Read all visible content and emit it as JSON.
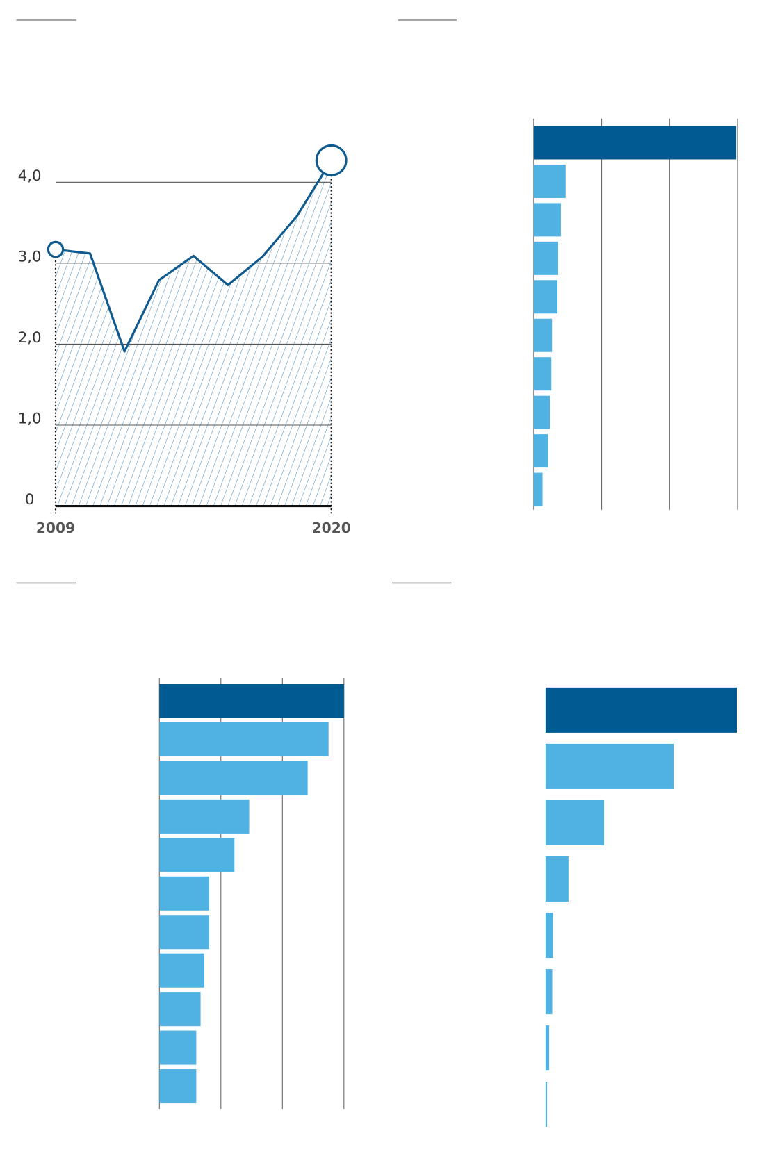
{
  "chart_data": [
    {
      "type": "line",
      "categories": [
        "2009",
        null,
        null,
        null,
        null,
        null,
        null,
        null,
        "2020"
      ],
      "values": [
        3.17,
        3.12,
        1.91,
        2.79,
        3.09,
        2.73,
        3.08,
        3.58,
        4.27
      ],
      "color": "#0f5a8e",
      "ylim": [
        0,
        4.3
      ],
      "yticks": [
        0,
        {
          "value": 1,
          "label": "1,0"
        },
        {
          "value": 2,
          "label": "2,0"
        },
        {
          "value": 3,
          "label": "3,0"
        },
        {
          "value": 4,
          "label": "4,0"
        }
      ],
      "grid": true
    },
    {
      "type": "barh",
      "values": [
        2.98,
        0.47,
        0.4,
        0.36,
        0.35,
        0.27,
        0.26,
        0.24,
        0.21,
        0.13
      ],
      "colors": [
        "#005b92",
        "#4fb2e3",
        "#4fb2e3",
        "#4fb2e3",
        "#4fb2e3",
        "#4fb2e3",
        "#4fb2e3",
        "#4fb2e3",
        "#4fb2e3",
        "#4fb2e3"
      ],
      "xlim": [
        0,
        3
      ],
      "xticks": [
        0,
        1,
        2,
        3
      ],
      "grid": true
    },
    {
      "type": "barh",
      "values": [
        3.0,
        2.75,
        2.41,
        1.46,
        1.22,
        0.81,
        0.81,
        0.73,
        0.67,
        0.6,
        0.6
      ],
      "colors": [
        "#005b92",
        "#4fb2e3",
        "#4fb2e3",
        "#4fb2e3",
        "#4fb2e3",
        "#4fb2e3",
        "#4fb2e3",
        "#4fb2e3",
        "#4fb2e3",
        "#4fb2e3",
        "#4fb2e3"
      ],
      "xlim": [
        0,
        3
      ],
      "xticks": [
        0,
        1,
        2,
        3
      ],
      "grid": true
    },
    {
      "type": "barh",
      "values": [
        1.0,
        0.67,
        0.306,
        0.12,
        0.039,
        0.035,
        0.019,
        0.008
      ],
      "colors": [
        "#005b92",
        "#4fb2e3",
        "#4fb2e3",
        "#4fb2e3",
        "#4fb2e3",
        "#4fb2e3",
        "#4fb2e3",
        "#4fb2e3"
      ],
      "xlim": [
        0,
        1
      ],
      "grid": false
    }
  ]
}
